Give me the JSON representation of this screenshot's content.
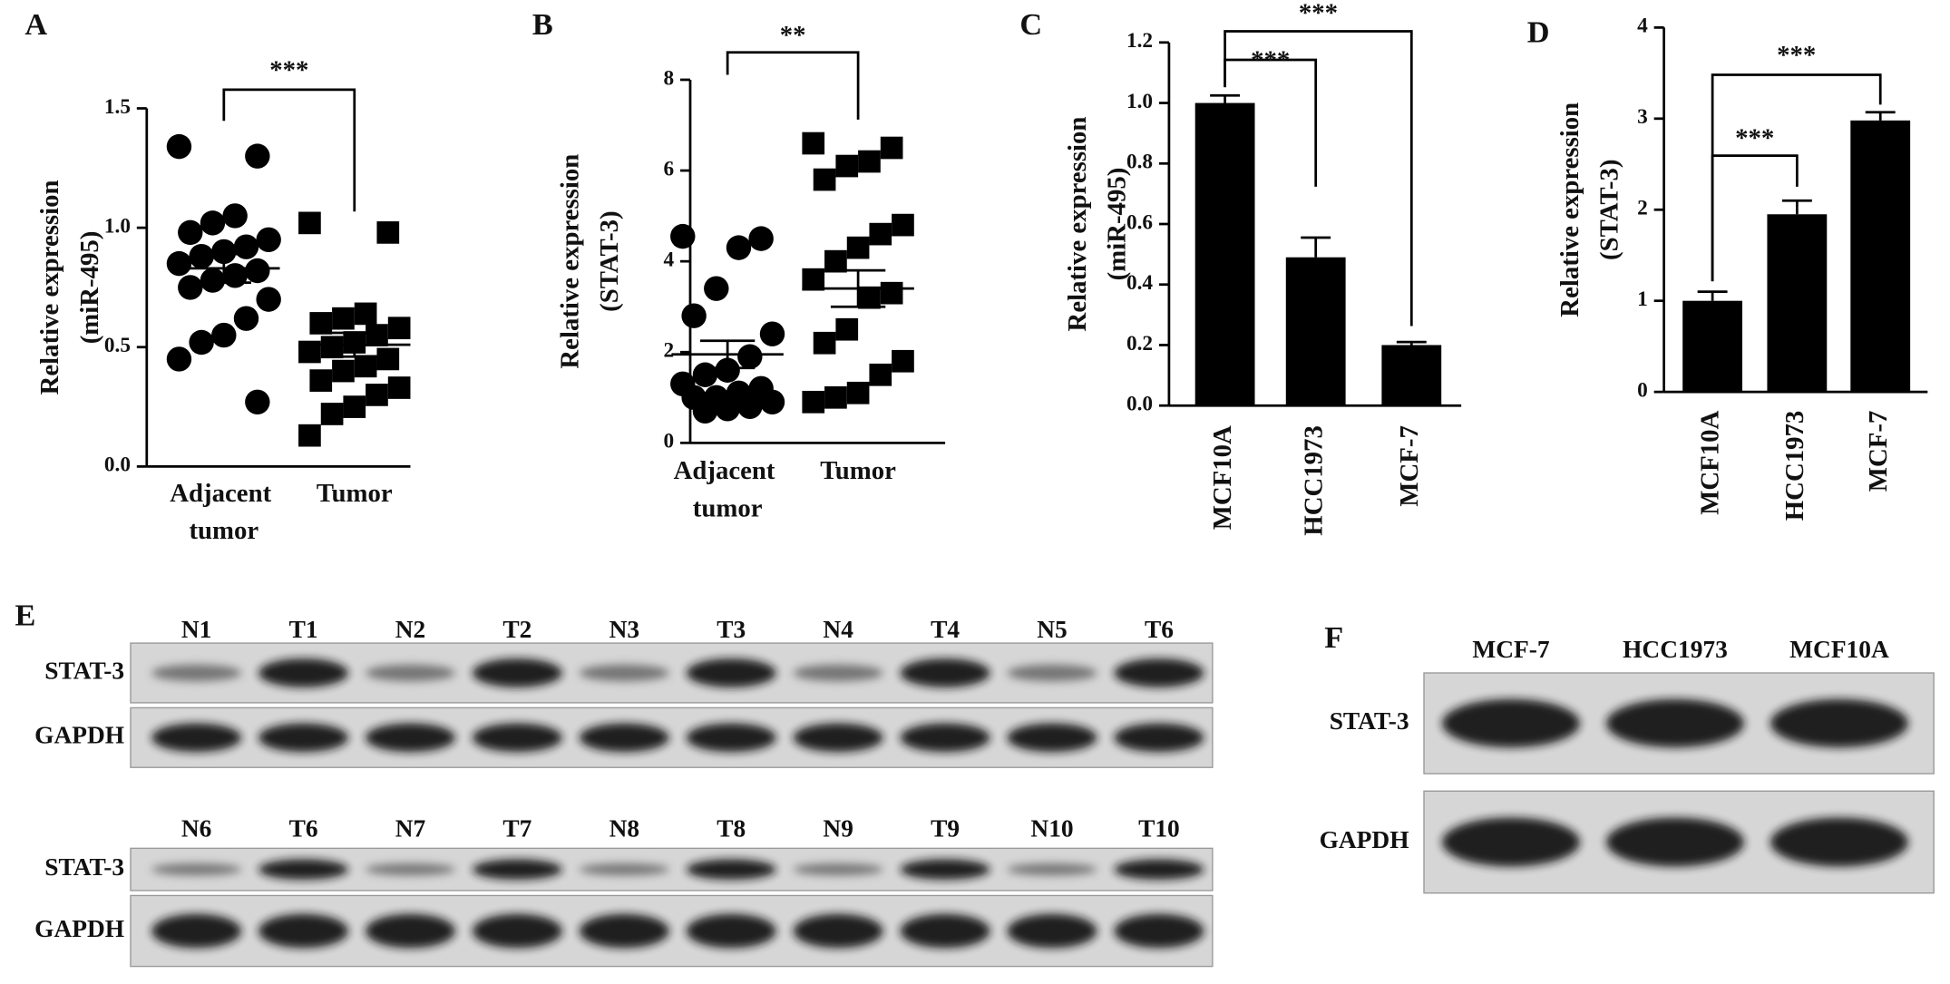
{
  "chart_data": [
    {
      "type": "dotplot",
      "panel": "A",
      "y_label": [
        "Relative expression",
        "(miR-495)"
      ],
      "categories": [
        "Adjacent tumor",
        "Tumor"
      ],
      "groups": [
        {
          "marker": "circle",
          "values": [
            1.34,
            1.3,
            1.05,
            1.02,
            0.98,
            0.95,
            0.92,
            0.9,
            0.88,
            0.85,
            0.82,
            0.8,
            0.78,
            0.75,
            0.7,
            0.62,
            0.55,
            0.52,
            0.45,
            0.27
          ],
          "mean": 0.83,
          "sem": 0.06
        },
        {
          "marker": "square",
          "values": [
            1.02,
            0.98,
            0.64,
            0.62,
            0.6,
            0.58,
            0.55,
            0.52,
            0.5,
            0.48,
            0.45,
            0.42,
            0.4,
            0.36,
            0.33,
            0.3,
            0.25,
            0.22,
            0.13
          ],
          "mean": 0.51,
          "sem": 0.05
        }
      ],
      "color": "#000000",
      "ylim": [
        0,
        1.5
      ],
      "yticks": [
        {
          "value": 0,
          "label": "0.0"
        },
        0.5,
        {
          "value": 1,
          "label": "1.0"
        },
        1.5
      ],
      "significance": [
        {
          "pair": [
            "Adjacent tumor",
            "Tumor"
          ],
          "label": "***"
        }
      ]
    },
    {
      "type": "dotplot",
      "panel": "B",
      "y_label": [
        "Relative expression",
        "(STAT-3)"
      ],
      "categories": [
        "Adjacent tumor",
        "Tumor"
      ],
      "groups": [
        {
          "marker": "circle",
          "values": [
            4.55,
            4.5,
            4.3,
            3.4,
            2.8,
            2.4,
            1.9,
            1.6,
            1.5,
            1.3,
            1.2,
            1.1,
            1.0,
            1.0,
            0.9,
            0.8,
            0.75,
            0.7
          ],
          "mean": 1.95,
          "sem": 0.3
        },
        {
          "marker": "square",
          "values": [
            6.6,
            6.5,
            6.2,
            6.1,
            5.8,
            4.8,
            4.6,
            4.3,
            4.0,
            3.6,
            3.3,
            3.2,
            2.5,
            2.2,
            1.8,
            1.5,
            1.1,
            1.0,
            0.9
          ],
          "mean": 3.4,
          "sem": 0.4
        }
      ],
      "color": "#000000",
      "ylim": [
        0,
        8
      ],
      "yticks": [
        0,
        2,
        4,
        6,
        8
      ],
      "significance": [
        {
          "pair": [
            "Adjacent tumor",
            "Tumor"
          ],
          "label": "**"
        }
      ]
    },
    {
      "type": "bar",
      "panel": "C",
      "y_label": [
        "Relative expression",
        "(miR-495)"
      ],
      "categories": [
        "MCF10A",
        "HCC1973",
        "MCF-7"
      ],
      "values": [
        1.0,
        0.49,
        0.2
      ],
      "errors": [
        0.025,
        0.065,
        0.01
      ],
      "color": "#000000",
      "ylim": [
        0,
        1.2
      ],
      "yticks": [
        {
          "value": 0,
          "label": "0.0"
        },
        0.2,
        0.4,
        0.6,
        0.8,
        {
          "value": 1,
          "label": "1.0"
        },
        1.2
      ],
      "significance": [
        {
          "pair": [
            "MCF10A",
            "HCC1973"
          ],
          "label": "***"
        },
        {
          "pair": [
            "MCF10A",
            "MCF-7"
          ],
          "label": "***"
        }
      ]
    },
    {
      "type": "bar",
      "panel": "D",
      "y_label": [
        "Relative expression",
        "(STAT-3)"
      ],
      "categories": [
        "MCF10A",
        "HCC1973",
        "MCF-7"
      ],
      "values": [
        1.0,
        1.95,
        2.98
      ],
      "errors": [
        0.1,
        0.15,
        0.09
      ],
      "color": "#000000",
      "ylim": [
        0,
        4
      ],
      "yticks": [
        0,
        1,
        2,
        3,
        4
      ],
      "significance": [
        {
          "pair": [
            "MCF10A",
            "HCC1973"
          ],
          "label": "***"
        },
        {
          "pair": [
            "MCF10A",
            "MCF-7"
          ],
          "label": "***"
        }
      ]
    }
  ],
  "blots": [
    {
      "panel": "E",
      "blocks": [
        {
          "lanes": [
            "N1",
            "T1",
            "N2",
            "T2",
            "N3",
            "T3",
            "N4",
            "T4",
            "N5",
            "T6"
          ],
          "rows": [
            "STAT-3",
            "GAPDH"
          ]
        },
        {
          "lanes": [
            "N6",
            "T6",
            "N7",
            "T7",
            "N8",
            "T8",
            "N9",
            "T9",
            "N10",
            "T10"
          ],
          "rows": [
            "STAT-3",
            "GAPDH"
          ]
        }
      ]
    },
    {
      "panel": "F",
      "blocks": [
        {
          "lanes": [
            "MCF-7",
            "HCC1973",
            "MCF10A"
          ],
          "rows": [
            "STAT-3",
            "GAPDH"
          ]
        }
      ]
    }
  ]
}
